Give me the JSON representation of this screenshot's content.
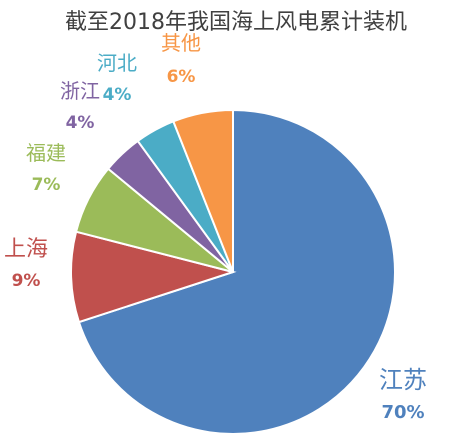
{
  "chart_data": {
    "type": "pie",
    "title": "截至2018年我国海上风电累计装机",
    "start_angle_deg": 0,
    "direction": "clockwise",
    "slices": [
      {
        "label": "江苏",
        "value": 70,
        "display": "70%",
        "color": "#4F81BD",
        "label_color": "#4F81BD"
      },
      {
        "label": "上海",
        "value": 9,
        "display": "9%",
        "color": "#C0504D",
        "label_color": "#C0504D"
      },
      {
        "label": "福建",
        "value": 7,
        "display": "7%",
        "color": "#9BBB59",
        "label_color": "#9BBB59"
      },
      {
        "label": "浙江",
        "value": 4,
        "display": "4%",
        "color": "#8064A2",
        "label_color": "#8064A2"
      },
      {
        "label": "河北",
        "value": 4,
        "display": "4%",
        "color": "#4BACC6",
        "label_color": "#4BACC6"
      },
      {
        "label": "其他",
        "value": 6,
        "display": "6%",
        "color": "#F79646",
        "label_color": "#F79646"
      }
    ]
  }
}
